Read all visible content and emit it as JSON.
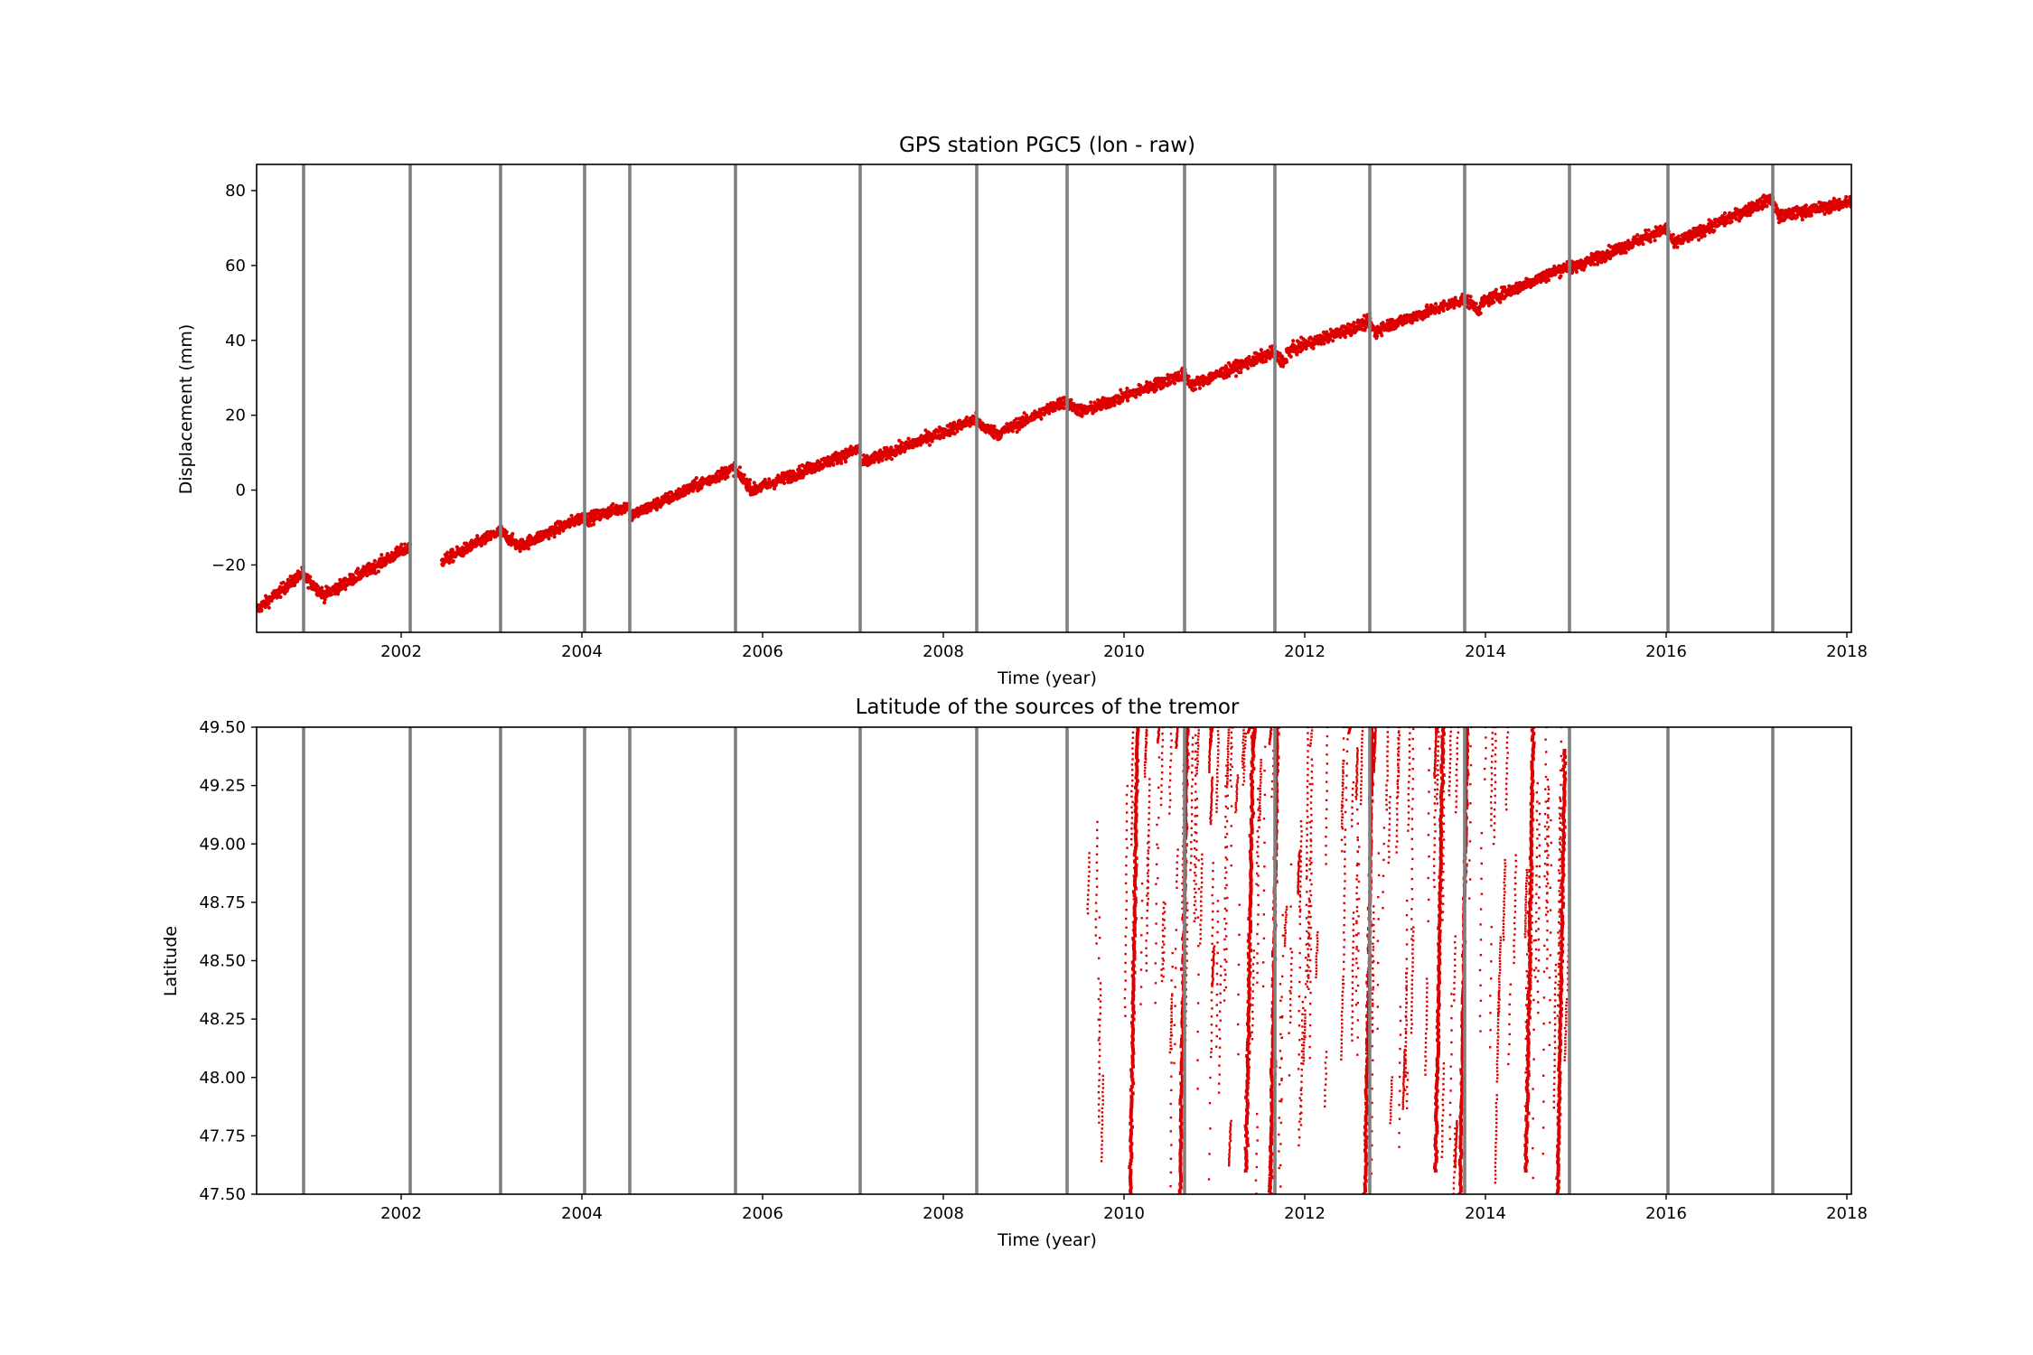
{
  "chart_data": [
    {
      "type": "scatter",
      "title": "GPS station PGC5 (lon - raw)",
      "xlabel": "Time (year)",
      "ylabel": "Displacement (mm)",
      "xlim": [
        2000.4,
        2018.05
      ],
      "ylim": [
        -38,
        87
      ],
      "xticks": [
        2002,
        2004,
        2006,
        2008,
        2010,
        2012,
        2014,
        2016,
        2018
      ],
      "yticks": [
        -20,
        0,
        20,
        40,
        60,
        80
      ],
      "ytick_labels": [
        "−20",
        "0",
        "20",
        "40",
        "60",
        "80"
      ],
      "grid": false,
      "marker_color": "#dd0000",
      "event_line_color": "#808080",
      "event_lines_x": [
        2000.92,
        2002.1,
        2003.1,
        2004.03,
        2004.53,
        2005.7,
        2007.08,
        2008.37,
        2009.37,
        2010.67,
        2011.67,
        2012.72,
        2013.77,
        2014.93,
        2016.02,
        2017.18
      ],
      "segments": [
        {
          "x": [
            2000.4,
            2000.92
          ],
          "y": [
            -32,
            -22
          ]
        },
        {
          "x": [
            2000.92,
            2001.15
          ],
          "y": [
            -23,
            -28
          ]
        },
        {
          "x": [
            2001.15,
            2002.1
          ],
          "y": [
            -28,
            -15
          ]
        },
        {
          "x": [
            2002.45,
            2003.1
          ],
          "y": [
            -19,
            -11
          ]
        },
        {
          "x": [
            2003.1,
            2003.3
          ],
          "y": [
            -11,
            -15
          ]
        },
        {
          "x": [
            2003.3,
            2004.03
          ],
          "y": [
            -15,
            -7
          ]
        },
        {
          "x": [
            2004.03,
            2004.53
          ],
          "y": [
            -8,
            -4
          ]
        },
        {
          "x": [
            2004.53,
            2005.7
          ],
          "y": [
            -7,
            6
          ]
        },
        {
          "x": [
            2005.7,
            2005.9
          ],
          "y": [
            5,
            0
          ]
        },
        {
          "x": [
            2005.9,
            2007.08
          ],
          "y": [
            0,
            11
          ]
        },
        {
          "x": [
            2007.08,
            2008.37
          ],
          "y": [
            7,
            19
          ]
        },
        {
          "x": [
            2008.37,
            2008.6
          ],
          "y": [
            18,
            15
          ]
        },
        {
          "x": [
            2008.6,
            2009.37
          ],
          "y": [
            15,
            24
          ]
        },
        {
          "x": [
            2009.37,
            2009.55
          ],
          "y": [
            23,
            21
          ]
        },
        {
          "x": [
            2009.55,
            2010.67
          ],
          "y": [
            21,
            31
          ]
        },
        {
          "x": [
            2010.67,
            2010.75
          ],
          "y": [
            31,
            28
          ]
        },
        {
          "x": [
            2010.75,
            2011.67
          ],
          "y": [
            28,
            37
          ]
        },
        {
          "x": [
            2011.67,
            2011.8
          ],
          "y": [
            36,
            34
          ]
        },
        {
          "x": [
            2011.8,
            2012.72
          ],
          "y": [
            37,
            45
          ]
        },
        {
          "x": [
            2012.72,
            2012.8
          ],
          "y": [
            45,
            41
          ]
        },
        {
          "x": [
            2012.8,
            2013.77
          ],
          "y": [
            43,
            51
          ]
        },
        {
          "x": [
            2013.77,
            2013.95
          ],
          "y": [
            51,
            48
          ]
        },
        {
          "x": [
            2013.95,
            2014.93
          ],
          "y": [
            50,
            60
          ]
        },
        {
          "x": [
            2014.93,
            2016.02
          ],
          "y": [
            59,
            70
          ]
        },
        {
          "x": [
            2016.02,
            2016.1
          ],
          "y": [
            69,
            65
          ]
        },
        {
          "x": [
            2016.1,
            2017.18
          ],
          "y": [
            66,
            78
          ]
        },
        {
          "x": [
            2017.18,
            2017.25
          ],
          "y": [
            77,
            73
          ]
        },
        {
          "x": [
            2017.25,
            2018.05
          ],
          "y": [
            73,
            77
          ]
        }
      ]
    },
    {
      "type": "scatter",
      "title": "Latitude of the sources of the tremor",
      "xlabel": "Time (year)",
      "ylabel": "Latitude",
      "xlim": [
        2000.4,
        2018.05
      ],
      "ylim": [
        47.5,
        49.5
      ],
      "xticks": [
        2002,
        2004,
        2006,
        2008,
        2010,
        2012,
        2014,
        2016,
        2018
      ],
      "yticks": [
        47.5,
        47.75,
        48.0,
        48.25,
        48.5,
        48.75,
        49.0,
        49.25,
        49.5
      ],
      "ytick_labels": [
        "47.50",
        "47.75",
        "48.00",
        "48.25",
        "48.50",
        "48.75",
        "49.00",
        "49.25",
        "49.50"
      ],
      "grid": false,
      "marker_color": "#dd0000",
      "event_line_color": "#808080",
      "event_lines_x": [
        2000.92,
        2002.1,
        2003.1,
        2004.03,
        2004.53,
        2005.7,
        2007.08,
        2008.37,
        2009.37,
        2010.67,
        2011.67,
        2012.72,
        2013.77,
        2014.93,
        2016.02,
        2017.18
      ],
      "tremor_time_range": [
        2009.6,
        2014.93
      ],
      "major_episodes": [
        {
          "x": 2010.12,
          "lat": [
            47.5,
            49.5
          ]
        },
        {
          "x": 2010.67,
          "lat": [
            47.5,
            49.5
          ]
        },
        {
          "x": 2011.4,
          "lat": [
            47.6,
            49.5
          ]
        },
        {
          "x": 2011.67,
          "lat": [
            47.5,
            49.5
          ]
        },
        {
          "x": 2012.72,
          "lat": [
            47.5,
            49.5
          ]
        },
        {
          "x": 2013.5,
          "lat": [
            47.6,
            49.5
          ]
        },
        {
          "x": 2013.77,
          "lat": [
            47.5,
            49.5
          ]
        },
        {
          "x": 2014.5,
          "lat": [
            47.6,
            49.5
          ]
        },
        {
          "x": 2014.85,
          "lat": [
            47.5,
            49.4
          ]
        }
      ]
    }
  ]
}
